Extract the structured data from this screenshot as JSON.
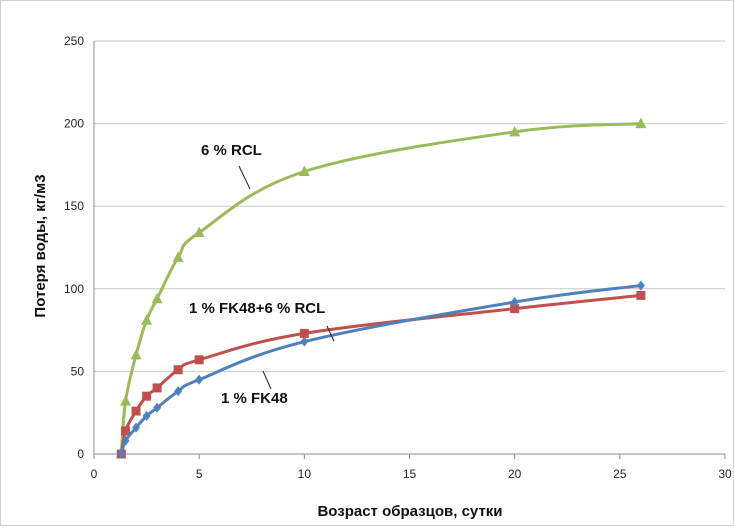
{
  "chart_data": {
    "type": "line",
    "title": "",
    "xlabel": "Возраст образцов, сутки",
    "ylabel": "Потеря воды, кг/м3",
    "xlim": [
      0,
      30
    ],
    "ylim": [
      0,
      250
    ],
    "xticks": [
      "0",
      "5",
      "10",
      "15",
      "20",
      "25",
      "30"
    ],
    "yticks": [
      "0",
      "50",
      "100",
      "150",
      "200",
      "250"
    ],
    "grid": "horizontal",
    "legend": "none (inline callout labels)",
    "series": [
      {
        "name": "6 % RCL",
        "color": "#9bbb59",
        "marker": "triangle",
        "x": [
          1.3,
          1.5,
          2,
          2.5,
          3,
          4,
          5,
          10,
          20,
          26
        ],
        "y": [
          0,
          32,
          60,
          81,
          94,
          119,
          134,
          171,
          195,
          200
        ]
      },
      {
        "name": "1 % FK48+6 % RCL",
        "color": "#c0504d",
        "marker": "square",
        "x": [
          1.3,
          1.5,
          2,
          2.5,
          3,
          4,
          5,
          10,
          20,
          26
        ],
        "y": [
          0,
          14,
          26,
          35,
          40,
          51,
          57,
          73,
          88,
          96
        ]
      },
      {
        "name": "1 % FK48",
        "color": "#4f81bd",
        "marker": "diamond",
        "x": [
          1.3,
          1.5,
          2,
          2.5,
          3,
          4,
          5,
          10,
          20,
          26
        ],
        "y": [
          0,
          8,
          16,
          23,
          28,
          38,
          45,
          68,
          92,
          102
        ]
      }
    ]
  }
}
